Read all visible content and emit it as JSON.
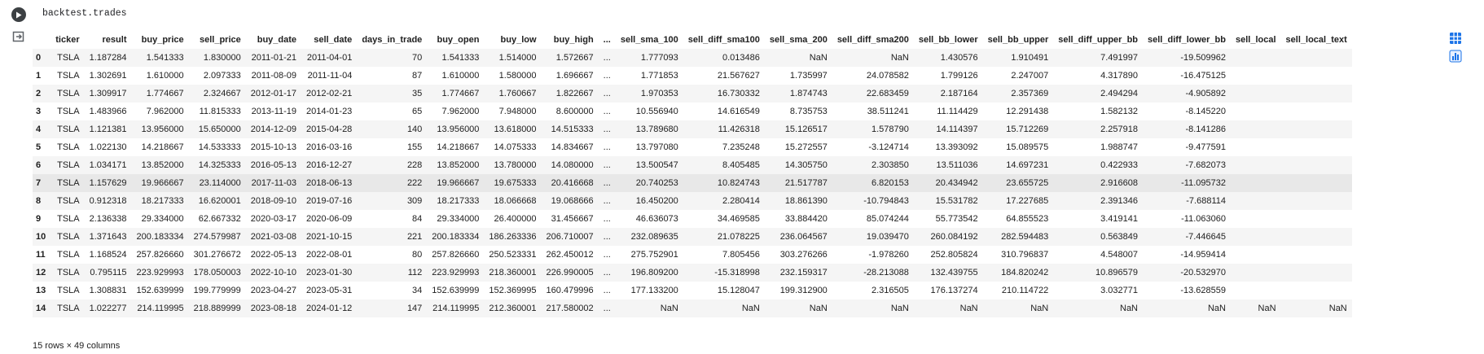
{
  "cell": {
    "code": "backtest.trades"
  },
  "icons": {
    "run": "play-icon",
    "output": "output-toggle-icon",
    "table_view": "table-icon",
    "chart_suggest": "chart-suggest-icon"
  },
  "colors": {
    "accent": "#1a73e8",
    "row_stripe": "#f5f5f5",
    "row_hover": "#e8e8e8"
  },
  "table": {
    "columns": [
      "",
      "ticker",
      "result",
      "buy_price",
      "sell_price",
      "buy_date",
      "sell_date",
      "days_in_trade",
      "buy_open",
      "buy_low",
      "buy_high",
      "...",
      "sell_sma_100",
      "sell_diff_sma100",
      "sell_sma_200",
      "sell_diff_sma200",
      "sell_bb_lower",
      "sell_bb_upper",
      "sell_diff_upper_bb",
      "sell_diff_lower_bb",
      "sell_local",
      "sell_local_text"
    ],
    "rows": [
      [
        "0",
        "TSLA",
        "1.187284",
        "1.541333",
        "1.830000",
        "2011-01-21",
        "2011-04-01",
        "70",
        "1.541333",
        "1.514000",
        "1.572667",
        "...",
        "1.777093",
        "0.013486",
        "NaN",
        "NaN",
        "1.430576",
        "1.910491",
        "7.491997",
        "-19.509962",
        "",
        ""
      ],
      [
        "1",
        "TSLA",
        "1.302691",
        "1.610000",
        "2.097333",
        "2011-08-09",
        "2011-11-04",
        "87",
        "1.610000",
        "1.580000",
        "1.696667",
        "...",
        "1.771853",
        "21.567627",
        "1.735997",
        "24.078582",
        "1.799126",
        "2.247007",
        "4.317890",
        "-16.475125",
        "",
        ""
      ],
      [
        "2",
        "TSLA",
        "1.309917",
        "1.774667",
        "2.324667",
        "2012-01-17",
        "2012-02-21",
        "35",
        "1.774667",
        "1.760667",
        "1.822667",
        "...",
        "1.970353",
        "16.730332",
        "1.874743",
        "22.683459",
        "2.187164",
        "2.357369",
        "2.494294",
        "-4.905892",
        "",
        ""
      ],
      [
        "3",
        "TSLA",
        "1.483966",
        "7.962000",
        "11.815333",
        "2013-11-19",
        "2014-01-23",
        "65",
        "7.962000",
        "7.948000",
        "8.600000",
        "...",
        "10.556940",
        "14.616549",
        "8.735753",
        "38.511241",
        "11.114429",
        "12.291438",
        "1.582132",
        "-8.145220",
        "",
        ""
      ],
      [
        "4",
        "TSLA",
        "1.121381",
        "13.956000",
        "15.650000",
        "2014-12-09",
        "2015-04-28",
        "140",
        "13.956000",
        "13.618000",
        "14.515333",
        "...",
        "13.789680",
        "11.426318",
        "15.126517",
        "1.578790",
        "14.114397",
        "15.712269",
        "2.257918",
        "-8.141286",
        "",
        ""
      ],
      [
        "5",
        "TSLA",
        "1.022130",
        "14.218667",
        "14.533333",
        "2015-10-13",
        "2016-03-16",
        "155",
        "14.218667",
        "14.075333",
        "14.834667",
        "...",
        "13.797080",
        "7.235248",
        "15.272557",
        "-3.124714",
        "13.393092",
        "15.089575",
        "1.988747",
        "-9.477591",
        "",
        ""
      ],
      [
        "6",
        "TSLA",
        "1.034171",
        "13.852000",
        "14.325333",
        "2016-05-13",
        "2016-12-27",
        "228",
        "13.852000",
        "13.780000",
        "14.080000",
        "...",
        "13.500547",
        "8.405485",
        "14.305750",
        "2.303850",
        "13.511036",
        "14.697231",
        "0.422933",
        "-7.682073",
        "",
        ""
      ],
      [
        "7",
        "TSLA",
        "1.157629",
        "19.966667",
        "23.114000",
        "2017-11-03",
        "2018-06-13",
        "222",
        "19.966667",
        "19.675333",
        "20.416668",
        "...",
        "20.740253",
        "10.824743",
        "21.517787",
        "6.820153",
        "20.434942",
        "23.655725",
        "2.916608",
        "-11.095732",
        "",
        ""
      ],
      [
        "8",
        "TSLA",
        "0.912318",
        "18.217333",
        "16.620001",
        "2018-09-10",
        "2019-07-16",
        "309",
        "18.217333",
        "18.066668",
        "19.068666",
        "...",
        "16.450200",
        "2.280414",
        "18.861390",
        "-10.794843",
        "15.531782",
        "17.227685",
        "2.391346",
        "-7.688114",
        "",
        ""
      ],
      [
        "9",
        "TSLA",
        "2.136338",
        "29.334000",
        "62.667332",
        "2020-03-17",
        "2020-06-09",
        "84",
        "29.334000",
        "26.400000",
        "31.456667",
        "...",
        "46.636073",
        "34.469585",
        "33.884420",
        "85.074244",
        "55.773542",
        "64.855523",
        "3.419141",
        "-11.063060",
        "",
        ""
      ],
      [
        "10",
        "TSLA",
        "1.371643",
        "200.183334",
        "274.579987",
        "2021-03-08",
        "2021-10-15",
        "221",
        "200.183334",
        "186.263336",
        "206.710007",
        "...",
        "232.089635",
        "21.078225",
        "236.064567",
        "19.039470",
        "260.084192",
        "282.594483",
        "0.563849",
        "-7.446645",
        "",
        ""
      ],
      [
        "11",
        "TSLA",
        "1.168524",
        "257.826660",
        "301.276672",
        "2022-05-13",
        "2022-08-01",
        "80",
        "257.826660",
        "250.523331",
        "262.450012",
        "...",
        "275.752901",
        "7.805456",
        "303.276266",
        "-1.978260",
        "252.805824",
        "310.796837",
        "4.548007",
        "-14.959414",
        "",
        ""
      ],
      [
        "12",
        "TSLA",
        "0.795115",
        "223.929993",
        "178.050003",
        "2022-10-10",
        "2023-01-30",
        "112",
        "223.929993",
        "218.360001",
        "226.990005",
        "...",
        "196.809200",
        "-15.318998",
        "232.159317",
        "-28.213088",
        "132.439755",
        "184.820242",
        "10.896579",
        "-20.532970",
        "",
        ""
      ],
      [
        "13",
        "TSLA",
        "1.308831",
        "152.639999",
        "199.779999",
        "2023-04-27",
        "2023-05-31",
        "34",
        "152.639999",
        "152.369995",
        "160.479996",
        "...",
        "177.133200",
        "15.128047",
        "199.312900",
        "2.316505",
        "176.137274",
        "210.114722",
        "3.032771",
        "-13.628559",
        "",
        ""
      ],
      [
        "14",
        "TSLA",
        "1.022277",
        "214.119995",
        "218.889999",
        "2023-08-18",
        "2024-01-12",
        "147",
        "214.119995",
        "212.360001",
        "217.580002",
        "...",
        "NaN",
        "NaN",
        "NaN",
        "NaN",
        "NaN",
        "NaN",
        "NaN",
        "NaN",
        "NaN",
        "NaN"
      ]
    ],
    "footer": "15 rows × 49 columns"
  }
}
